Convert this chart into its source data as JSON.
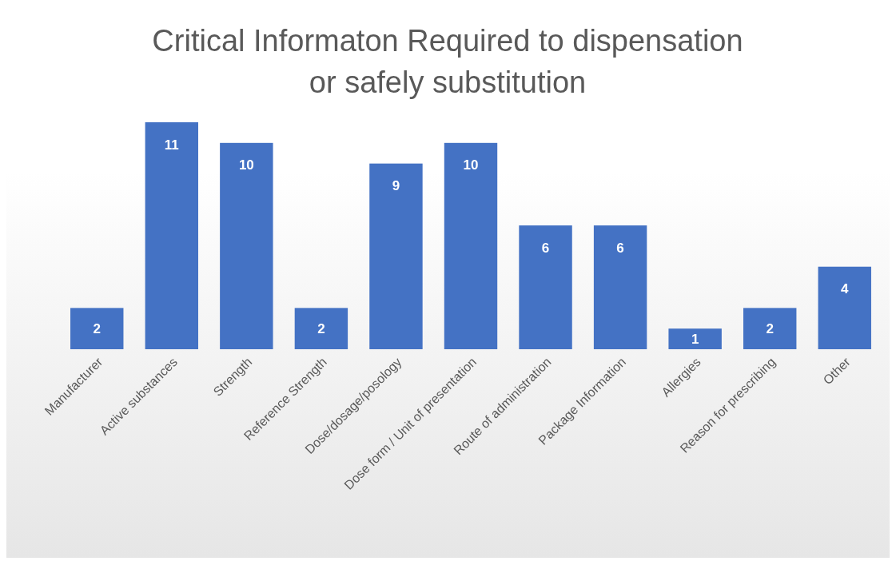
{
  "chart_data": {
    "type": "bar",
    "title": "Critical Informaton Required to dispensation or safely substitution",
    "categories": [
      "Manufacturer",
      "Active substances",
      "Strength",
      "Reference Strength",
      "Dose/dosage/posology",
      "Dose form / Unit of presentation",
      "Route of administration",
      "Package Information",
      "Allergies",
      "Reason for prescribing",
      "Other"
    ],
    "values": [
      2,
      11,
      10,
      2,
      9,
      10,
      6,
      6,
      1,
      2,
      4
    ],
    "color": "#4472c4",
    "data_labels": true
  }
}
